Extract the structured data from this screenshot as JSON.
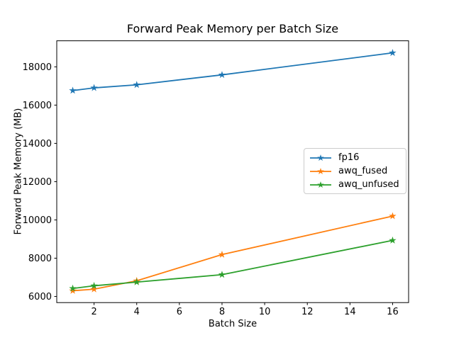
{
  "chart_data": {
    "type": "line",
    "title": "Forward Peak Memory per Batch Size",
    "xlabel": "Batch Size",
    "ylabel": "Forward Peak Memory (MB)",
    "x": [
      1,
      2,
      4,
      8,
      16
    ],
    "series": [
      {
        "name": "fp16",
        "color": "#1f77b4",
        "values": [
          16760,
          16900,
          17060,
          17580,
          18730
        ]
      },
      {
        "name": "awq_fused",
        "color": "#ff7f0e",
        "values": [
          6300,
          6380,
          6820,
          8190,
          10200
        ]
      },
      {
        "name": "awq_unfused",
        "color": "#2ca02c",
        "values": [
          6420,
          6560,
          6750,
          7140,
          8930
        ]
      }
    ],
    "marker": "star",
    "xticks": [
      2,
      4,
      6,
      8,
      10,
      12,
      14,
      16
    ],
    "yticks": [
      6000,
      8000,
      10000,
      12000,
      14000,
      16000,
      18000
    ],
    "xlim": [
      0.25,
      16.75
    ],
    "ylim": [
      5680,
      19360
    ],
    "grid": false,
    "legend_position": "center-right",
    "axis_color": "#000000",
    "background_color": "#ffffff"
  }
}
